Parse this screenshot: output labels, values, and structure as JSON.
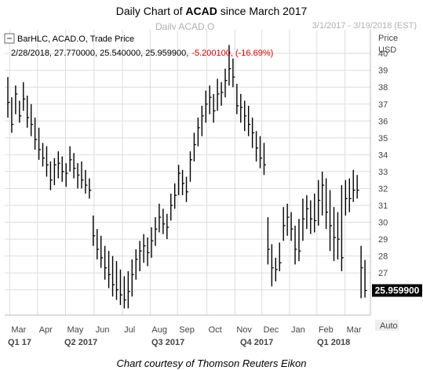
{
  "header": {
    "title_prefix": "Daily Chart of ",
    "title_ticker": "ACAD",
    "title_suffix": " since March 2017",
    "subtitle": "Daily ACAD.O",
    "date_range": "3/1/2017 - 3/19/2018 (EST)"
  },
  "caption": "Chart courtesy of Thomson Reuters Eikon",
  "chart_data": {
    "type": "bar",
    "series_label": "BarHLC, ACAD.O, Trade Price",
    "legend_values": "2/28/2018, 27.770000, 25.540000, 25.959900,",
    "legend_change": "-5.200100, (-16.69%)",
    "price_label": "Price",
    "currency_label": "USD",
    "scale_label": "Auto",
    "last_value": 25.9599,
    "last_value_label": "25.959900",
    "ylim": [
      24.5,
      41.4
    ],
    "y_ticks": [
      26,
      27,
      28,
      29,
      30,
      31,
      32,
      33,
      34,
      35,
      36,
      37,
      38,
      39,
      40
    ],
    "month_labels": [
      "Mar",
      "Apr",
      "May",
      "Jun",
      "Jul",
      "Aug",
      "Sep",
      "Oct",
      "Nov",
      "Dec",
      "Jan",
      "Feb",
      "Mar"
    ],
    "quarter_labels": [
      "Q1 17",
      "Q2 2017",
      "Q3 2017",
      "Q4 2017",
      "Q1 2018"
    ],
    "colors": {
      "bars": "#000000",
      "last_box": "#000000",
      "change": "#d40000",
      "grid": "#dddddd"
    },
    "bars": [
      [
        38.6,
        36.2,
        37.1
      ],
      [
        37.4,
        35.3,
        35.8
      ],
      [
        38.1,
        36.4,
        37.6
      ],
      [
        37.2,
        35.9,
        36.3
      ],
      [
        38.3,
        36.6,
        37.3
      ],
      [
        37.5,
        35.6,
        36.2
      ],
      [
        37.0,
        35.1,
        35.8
      ],
      [
        36.2,
        34.3,
        34.9
      ],
      [
        35.6,
        33.7,
        34.3
      ],
      [
        34.7,
        33.3,
        33.8
      ],
      [
        34.5,
        32.7,
        33.4
      ],
      [
        33.6,
        31.9,
        32.5
      ],
      [
        33.8,
        32.2,
        33.4
      ],
      [
        34.2,
        32.6,
        33.5
      ],
      [
        33.9,
        32.4,
        33.0
      ],
      [
        33.5,
        32.1,
        32.9
      ],
      [
        34.5,
        33.0,
        33.7
      ],
      [
        34.1,
        32.6,
        33.2
      ],
      [
        33.5,
        32.0,
        32.8
      ],
      [
        33.6,
        32.0,
        32.5
      ],
      [
        33.1,
        31.7,
        32.2
      ],
      [
        32.6,
        31.4,
        31.9
      ],
      [
        30.4,
        28.6,
        29.2
      ],
      [
        29.6,
        27.8,
        28.4
      ],
      [
        29.2,
        27.3,
        27.9
      ],
      [
        28.6,
        26.6,
        27.3
      ],
      [
        28.3,
        26.1,
        26.9
      ],
      [
        28.0,
        25.6,
        26.3
      ],
      [
        27.7,
        25.4,
        26.0
      ],
      [
        27.2,
        25.1,
        25.7
      ],
      [
        26.8,
        24.9,
        25.4
      ],
      [
        27.1,
        24.9,
        25.9
      ],
      [
        27.8,
        25.6,
        26.9
      ],
      [
        28.4,
        26.6,
        27.8
      ],
      [
        28.9,
        27.1,
        28.3
      ],
      [
        29.3,
        27.6,
        28.6
      ],
      [
        29.1,
        27.4,
        28.2
      ],
      [
        29.7,
        27.9,
        28.9
      ],
      [
        30.3,
        28.6,
        29.6
      ],
      [
        31.1,
        29.4,
        30.3
      ],
      [
        30.8,
        29.3,
        29.9
      ],
      [
        30.5,
        29.0,
        29.7
      ],
      [
        31.7,
        30.1,
        31.0
      ],
      [
        32.3,
        30.8,
        31.6
      ],
      [
        33.4,
        31.6,
        32.9
      ],
      [
        33.1,
        31.6,
        32.3
      ],
      [
        32.7,
        31.2,
        31.8
      ],
      [
        34.2,
        32.4,
        33.7
      ],
      [
        35.3,
        33.6,
        34.6
      ],
      [
        36.2,
        34.5,
        35.6
      ],
      [
        36.9,
        35.1,
        36.3
      ],
      [
        37.8,
        35.9,
        37.0
      ],
      [
        38.1,
        36.4,
        37.4
      ],
      [
        37.6,
        35.9,
        36.6
      ],
      [
        38.5,
        36.6,
        37.6
      ],
      [
        38.3,
        36.9,
        37.7
      ],
      [
        39.1,
        37.4,
        38.4
      ],
      [
        40.5,
        38.1,
        39.1
      ],
      [
        39.7,
        38.0,
        38.6
      ],
      [
        38.2,
        36.4,
        36.9
      ],
      [
        37.6,
        35.9,
        36.8
      ],
      [
        37.2,
        35.4,
        36.3
      ],
      [
        36.9,
        35.1,
        35.8
      ],
      [
        36.2,
        34.4,
        35.3
      ],
      [
        35.4,
        33.6,
        34.4
      ],
      [
        35.1,
        33.2,
        33.8
      ],
      [
        34.7,
        32.8,
        33.4
      ],
      [
        30.3,
        27.5,
        28.4
      ],
      [
        28.7,
        26.2,
        27.3
      ],
      [
        27.9,
        26.5,
        27.2
      ],
      [
        28.8,
        27.1,
        27.6
      ],
      [
        30.9,
        28.9,
        29.8
      ],
      [
        31.1,
        29.2,
        30.3
      ],
      [
        30.6,
        28.9,
        29.6
      ],
      [
        29.8,
        27.5,
        28.4
      ],
      [
        30.2,
        27.7,
        28.3
      ],
      [
        31.4,
        28.9,
        30.2
      ],
      [
        31.6,
        29.6,
        30.8
      ],
      [
        31.3,
        29.3,
        30.2
      ],
      [
        31.7,
        29.4,
        30.1
      ],
      [
        32.5,
        29.8,
        31.3
      ],
      [
        33.0,
        30.4,
        32.2
      ],
      [
        32.6,
        29.6,
        30.6
      ],
      [
        31.9,
        28.3,
        29.8
      ],
      [
        30.9,
        27.7,
        29.1
      ],
      [
        30.6,
        27.8,
        29.0
      ],
      [
        32.2,
        27.1,
        27.9
      ],
      [
        32.5,
        30.4,
        31.4
      ],
      [
        32.6,
        30.6,
        31.4
      ],
      [
        33.1,
        31.2,
        31.9
      ],
      [
        32.8,
        31.4,
        31.9
      ],
      [
        28.6,
        25.5,
        27.3
      ],
      [
        27.77,
        25.54,
        25.9599
      ]
    ]
  }
}
